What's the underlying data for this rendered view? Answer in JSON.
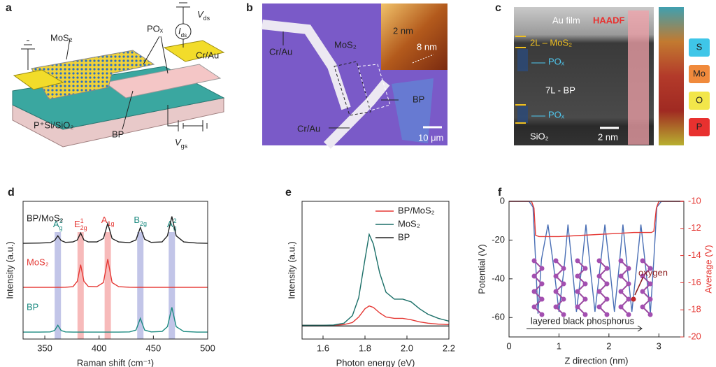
{
  "schematic": {
    "letter": "a",
    "mos2": "MoS₂",
    "pox": "POₓ",
    "contact": "Cr/Au",
    "vds": {
      "symbol": "V",
      "sub": "ds"
    },
    "ids": {
      "symbol": "I",
      "sub": "ds"
    },
    "bp": "BP",
    "substrate": "P⁺Si/SiO₂",
    "vgs": {
      "symbol": "V",
      "sub": "gs"
    }
  },
  "micrograph": {
    "letter": "b",
    "contact_top": "Cr/Au",
    "mos2": "MoS₂",
    "inset_height_1": "2 nm",
    "inset_height_2": "8 nm",
    "bp": "BP",
    "contact_bottom": "Cr/Au",
    "scale_bar": "10 μm"
  },
  "tem": {
    "letter": "c",
    "au_film": "Au film",
    "mode": "HAADF",
    "mos2_layer": "2L – MoS₂",
    "pox_top": "POₓ",
    "bp_layer": "7L - BP",
    "pox_bottom": "POₓ",
    "substrate": "SiO₂",
    "scale_bar": "2 nm",
    "elements": [
      {
        "name": "S",
        "color": "#3fc6e8"
      },
      {
        "name": "Mo",
        "color": "#f08a3c"
      },
      {
        "name": "O",
        "color": "#f2e64a"
      },
      {
        "name": "P",
        "color": "#e8312f"
      }
    ]
  },
  "chart_data": [
    {
      "type": "line",
      "letter": "d",
      "x_label": "Raman shift (cm⁻¹)",
      "y_label": "Intensity (a.u.)",
      "legend": "inline",
      "xlim": [
        330,
        500
      ],
      "xticks": [
        350,
        400,
        450,
        500
      ],
      "ylim": [
        0,
        10
      ],
      "x": [
        330,
        345,
        355,
        359,
        362,
        365,
        369,
        376,
        380,
        383,
        386,
        390,
        398,
        404,
        408,
        412,
        418,
        428,
        434,
        438,
        442,
        448,
        458,
        463,
        467,
        471,
        478,
        490,
        500
      ],
      "series": [
        {
          "name": "BP/MoS₂",
          "color": "#222222",
          "values": [
            6.95,
            6.97,
            7.0,
            7.15,
            7.5,
            7.15,
            7.02,
            7.05,
            7.2,
            7.7,
            7.2,
            7.05,
            7.05,
            7.3,
            8.4,
            7.3,
            7.05,
            7.0,
            7.2,
            8.1,
            7.25,
            7.02,
            7.05,
            7.5,
            8.9,
            7.5,
            7.05,
            6.97,
            6.95
          ]
        },
        {
          "name": "MoS₂",
          "color": "#e53935",
          "values": [
            3.75,
            3.75,
            3.75,
            3.75,
            3.76,
            3.75,
            3.76,
            3.8,
            4.2,
            5.4,
            4.2,
            3.82,
            3.8,
            4.1,
            5.8,
            4.1,
            3.8,
            3.76,
            3.75,
            3.76,
            3.75,
            3.75,
            3.75,
            3.75,
            3.75,
            3.75,
            3.75,
            3.75,
            3.75
          ]
        },
        {
          "name": "BP",
          "color": "#1b8a80",
          "values": [
            0.5,
            0.5,
            0.52,
            0.62,
            1.0,
            0.62,
            0.52,
            0.5,
            0.5,
            0.5,
            0.5,
            0.5,
            0.5,
            0.5,
            0.5,
            0.5,
            0.5,
            0.52,
            0.65,
            1.5,
            0.65,
            0.52,
            0.55,
            0.9,
            2.3,
            0.9,
            0.55,
            0.5,
            0.5
          ]
        }
      ],
      "peak_bands": [
        {
          "x": 362,
          "color": "#b3b6e2",
          "label": {
            "base": "A",
            "sub": "g",
            "sup": "1",
            "color": "#1b8a80"
          }
        },
        {
          "x": 383,
          "color": "#f5a9a9",
          "label": {
            "base": "E",
            "sub": "2g",
            "sup": "1",
            "color": "#e53935"
          }
        },
        {
          "x": 408,
          "color": "#f5a9a9",
          "label": {
            "base": "A",
            "sub": "1g",
            "color": "#e53935"
          }
        },
        {
          "x": 438,
          "color": "#b3b6e2",
          "label": {
            "base": "B",
            "sub": "2g",
            "color": "#1b8a80"
          }
        },
        {
          "x": 467,
          "color": "#b3b6e2",
          "label": {
            "base": "A",
            "sub": "g",
            "sup": "2",
            "color": "#1b8a80"
          }
        }
      ]
    },
    {
      "type": "line",
      "letter": "e",
      "x_label": "Photon energy (eV)",
      "y_label": "Intensity (a.u.)",
      "legend": "upper right",
      "xlim": [
        1.5,
        2.2
      ],
      "xticks": [
        1.6,
        1.8,
        {
          "value": 2,
          "label": "2.0"
        },
        2.2
      ],
      "ylim": [
        0,
        10
      ],
      "x": [
        1.5,
        1.6,
        1.65,
        1.7,
        1.74,
        1.77,
        1.8,
        1.82,
        1.84,
        1.87,
        1.9,
        1.94,
        1.98,
        2.02,
        2.06,
        2.1,
        2.15,
        2.2
      ],
      "series": [
        {
          "name": "BP/MoS₂",
          "color": "#e53935",
          "values": [
            1.0,
            1.0,
            1.0,
            1.05,
            1.2,
            1.6,
            2.2,
            2.4,
            2.3,
            1.9,
            1.6,
            1.5,
            1.5,
            1.4,
            1.25,
            1.15,
            1.08,
            1.05
          ]
        },
        {
          "name": "MoS₂",
          "color": "#1b6f68",
          "values": [
            1.0,
            1.0,
            1.02,
            1.15,
            1.7,
            3.0,
            5.8,
            7.6,
            6.9,
            4.8,
            3.4,
            2.9,
            2.9,
            2.7,
            2.2,
            1.8,
            1.5,
            1.3
          ]
        },
        {
          "name": "BP",
          "color": "#222222",
          "values": [
            0.95,
            0.95,
            0.95,
            0.95,
            0.95,
            0.95,
            0.95,
            0.95,
            0.95,
            0.95,
            0.95,
            0.95,
            0.95,
            0.95,
            0.95,
            0.95,
            0.95,
            0.95
          ]
        }
      ]
    },
    {
      "type": "line",
      "letter": "f",
      "x_label": "Z direction (nm)",
      "y_label": "Potential (V)",
      "y2_label": "Average (V)",
      "y2_color": "#e53935",
      "xlim": [
        0,
        3.5
      ],
      "xticks": [
        0,
        1,
        2,
        3
      ],
      "ylim": [
        -70,
        0
      ],
      "yticks": [
        0,
        -20,
        -40,
        -60
      ],
      "y2lim": [
        -20,
        -10
      ],
      "y2ticks": [
        -10,
        -12,
        -14,
        -16,
        -18,
        -20
      ],
      "annotations": [
        "oxygen",
        "layered black phosphorus"
      ],
      "series": [
        {
          "color": "#4a6fb5",
          "axis": "y",
          "x": [
            0,
            0.4,
            0.48,
            0.53,
            0.58,
            0.65,
            0.78,
            0.9,
            1.0,
            1.1,
            1.18,
            1.27,
            1.35,
            1.45,
            1.54,
            1.63,
            1.72,
            1.82,
            1.92,
            2.02,
            2.11,
            2.2,
            2.28,
            2.37,
            2.46,
            2.55,
            2.64,
            2.74,
            2.83,
            2.9,
            2.96,
            3.05,
            3.5
          ],
          "values": [
            0,
            0,
            -3,
            -30,
            -58,
            -30,
            -12,
            -35,
            -57,
            -35,
            -12,
            -35,
            -57,
            -35,
            -12,
            -35,
            -57,
            -35,
            -12,
            -35,
            -57,
            -35,
            -12,
            -35,
            -57,
            -35,
            -12,
            -35,
            -58,
            -30,
            -3,
            0,
            0
          ]
        },
        {
          "color": "#e53935",
          "axis": "y2",
          "x": [
            0,
            0.45,
            0.5,
            0.53,
            0.6,
            1.0,
            1.5,
            2.0,
            2.5,
            2.85,
            2.9,
            2.95,
            3.0,
            3.5
          ],
          "values": [
            -10,
            -10,
            -10.5,
            -12.5,
            -12.6,
            -12.6,
            -12.5,
            -12.4,
            -12.3,
            -12.3,
            -12.2,
            -10.5,
            -10,
            -10
          ]
        }
      ]
    }
  ]
}
